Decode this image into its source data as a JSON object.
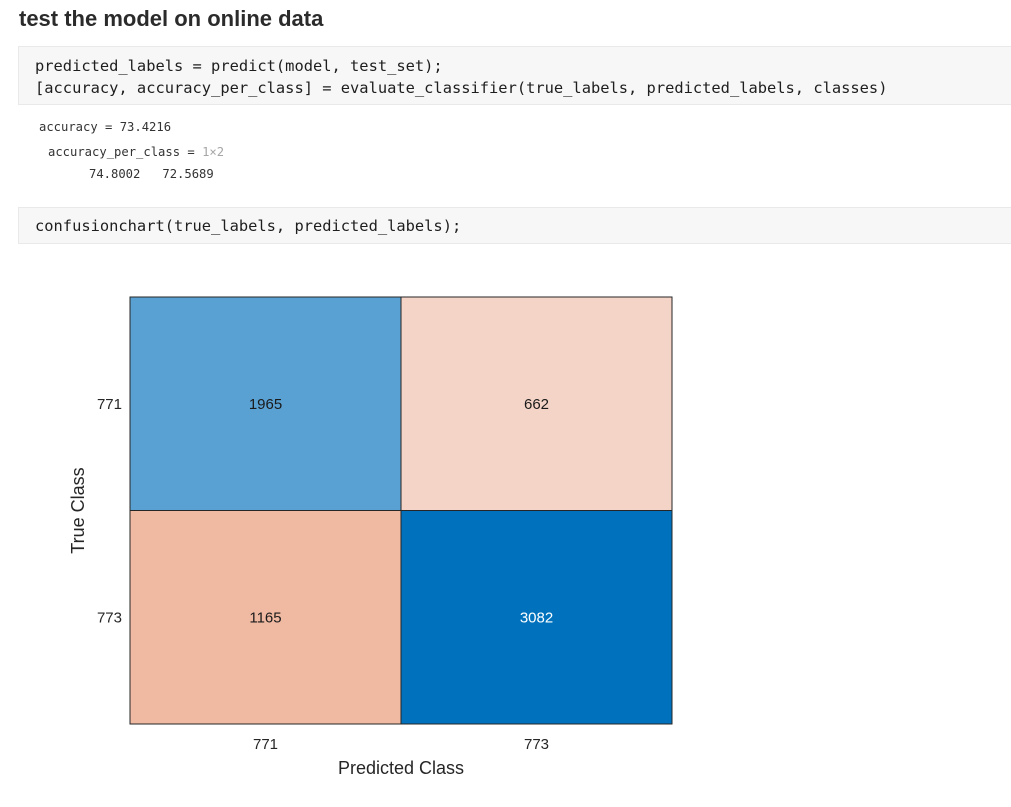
{
  "heading": "test the model on online data",
  "cell1": {
    "line1": "predicted_labels = predict(model, test_set);",
    "line2": "[accuracy, accuracy_per_class] = evaluate_classifier(true_labels, predicted_labels, classes)"
  },
  "output": {
    "accuracy_line": "accuracy = 73.4216",
    "per_class_name": "accuracy_per_class = ",
    "per_class_size": "1×2",
    "per_class_values": "74.8002   72.5689"
  },
  "cell2": {
    "line1": "confusionchart(true_labels, predicted_labels);"
  },
  "chart_data": {
    "type": "heatmap",
    "xlabel": "Predicted Class",
    "ylabel": "True Class",
    "x_categories": [
      "771",
      "773"
    ],
    "y_categories": [
      "771",
      "773"
    ],
    "matrix": [
      [
        1965,
        662
      ],
      [
        1165,
        3082
      ]
    ],
    "colors": {
      "diag_max": "#0072bd",
      "diag_low": "#5aa1d3",
      "off_low": "#f4d4c6",
      "off_high": "#efb9a2",
      "border": "#262626"
    }
  }
}
